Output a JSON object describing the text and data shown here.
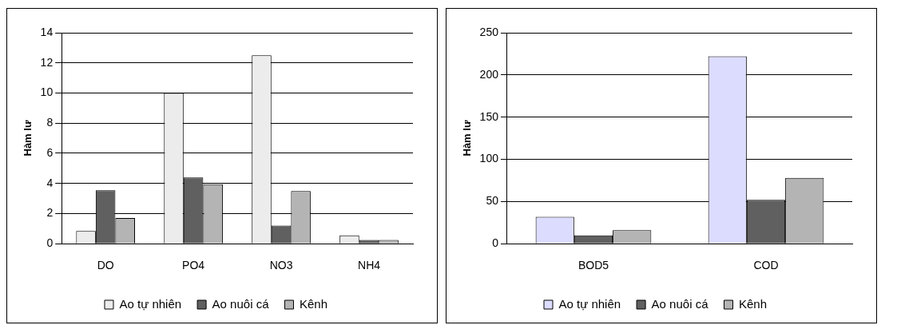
{
  "chart_data": [
    {
      "type": "bar",
      "ylabel": "Hàm lư",
      "categories": [
        "DO",
        "PO4",
        "NO3",
        "NH4"
      ],
      "series": [
        {
          "name": "Ao tự nhiên",
          "color": "#ececec",
          "values": [
            0.85,
            10,
            12.5,
            0.55
          ]
        },
        {
          "name": "Ao nuôi cá",
          "color": "#606060",
          "values": [
            3.55,
            4.4,
            1.2,
            0.25
          ]
        },
        {
          "name": "Kênh",
          "color": "#b4b4b4",
          "values": [
            1.7,
            3.95,
            3.5,
            0.25
          ]
        }
      ],
      "ylim": [
        0,
        14
      ],
      "yticks": [
        0,
        2,
        4,
        6,
        8,
        10,
        12,
        14
      ],
      "grid": "y",
      "legend": "bottom"
    },
    {
      "type": "bar",
      "ylabel": "Hàm lư",
      "categories": [
        "BOD5",
        "COD"
      ],
      "series": [
        {
          "name": "Ao tự nhiên",
          "color": "#dcdcff",
          "values": [
            32,
            222
          ]
        },
        {
          "name": "Ao nuôi cá",
          "color": "#606060",
          "values": [
            10,
            52
          ]
        },
        {
          "name": "Kênh",
          "color": "#b4b4b4",
          "values": [
            16,
            78
          ]
        }
      ],
      "ylim": [
        0,
        250
      ],
      "yticks": [
        0,
        50,
        100,
        150,
        200,
        250
      ],
      "grid": "y",
      "legend": "bottom"
    }
  ]
}
